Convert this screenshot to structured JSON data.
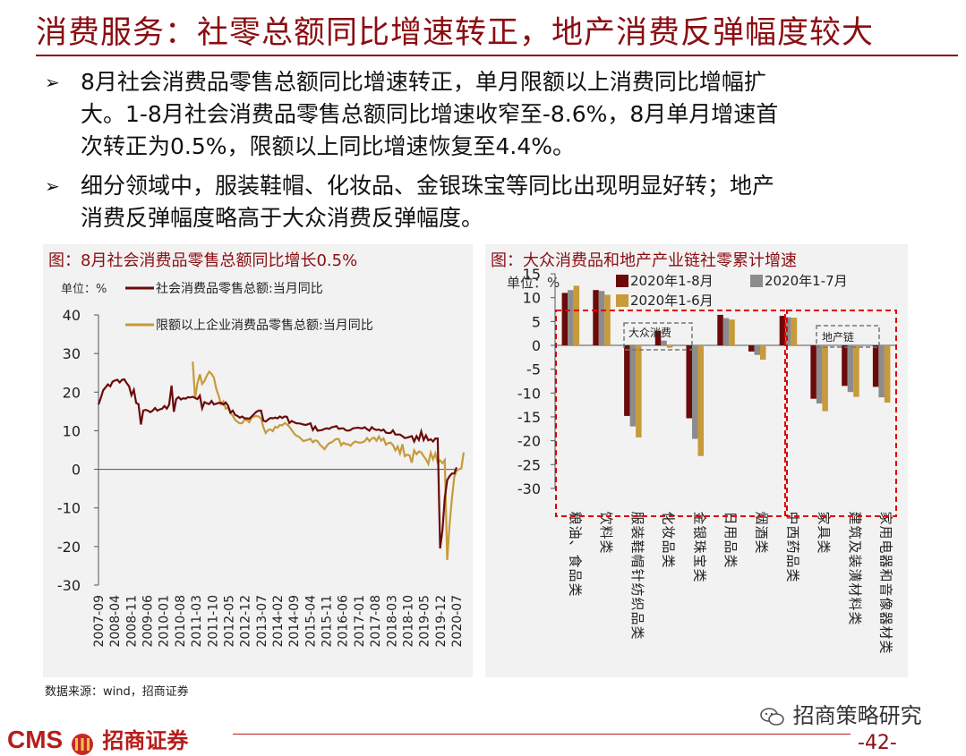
{
  "header": {
    "title": "消费服务：社零总额同比增速转正，地产消费反弹幅度较大"
  },
  "bullets": [
    {
      "arrow": "➢",
      "lines": [
        "8月社会消费品零售总额同比增速转正，单月限额以上消费同比增幅扩",
        "大。1-8月社会消费品零售总额同比增速收窄至-8.6%，8月单月增速首",
        "次转正为0.5%，限额以上同比增速恢复至4.4%。"
      ]
    },
    {
      "arrow": "➢",
      "lines": [
        "细分领域中，服装鞋帽、化妆品、金银珠宝等同比出现明显好转；地产",
        "消费反弹幅度略高于大众消费反弹幅度。"
      ]
    }
  ],
  "chart_data": [
    {
      "type": "line",
      "title": "图：8月社会消费品零售总额同比增长0.5%",
      "unit_label": "单位：%",
      "ylim": [
        -30,
        40
      ],
      "yticks": [
        "40",
        "30",
        "20",
        "10",
        "0",
        "-10",
        "-20",
        "-30"
      ],
      "x_ticks": [
        "2007-09",
        "2008-04",
        "2008-11",
        "2009-06",
        "2010-01",
        "2010-08",
        "2011-03",
        "2011-10",
        "2012-05",
        "2012-12",
        "2013-07",
        "2014-02",
        "2014-09",
        "2015-04",
        "2015-11",
        "2016-06",
        "2017-01",
        "2017-08",
        "2018-03",
        "2018-10",
        "2019-05",
        "2019-12",
        "2020-07"
      ],
      "series": [
        {
          "name": "社会消费品零售总额:当月同比",
          "color": "#6b0a0a",
          "values": [
            16.8,
            18.5,
            20.5,
            21.2,
            22.0,
            21.5,
            22.7,
            23.0,
            23.2,
            22.5,
            23.2,
            23.3,
            22.3,
            21.5,
            19.2,
            20.6,
            17.2,
            16.9,
            11.6,
            15.2,
            15.4,
            15.2,
            14.8,
            15.2,
            15.9,
            15.2,
            15.5,
            15.7,
            16.4,
            15.7,
            16.7,
            21.7,
            14.9,
            18.2,
            18.7,
            18.1,
            18.4,
            18.3,
            18.7,
            18.6,
            18.8,
            18.5,
            18.2,
            19.1,
            15.8,
            17.4,
            17.1,
            16.9,
            17.7,
            16.8,
            17.0,
            17.2,
            17.2,
            16.8,
            17.3,
            16.5,
            14.7,
            15.2,
            14.1,
            13.8,
            13.4,
            13.7,
            13.2,
            13.2,
            13.1,
            13.7,
            14.3,
            14.9,
            15.2,
            15.2,
            12.6,
            12.4,
            12.9,
            13.3,
            13.2,
            13.4,
            13.2,
            13.7,
            13.3,
            13.7,
            13.6,
            12.0,
            12.5,
            12.2,
            11.9,
            11.9,
            11.8,
            11.6,
            11.5,
            11.7,
            11.9,
            10.2,
            11.1,
            10.0,
            10.1,
            10.2,
            10.5,
            10.6,
            10.5,
            10.9,
            11.0,
            11.2,
            10.5,
            10.6,
            10.6,
            10.1,
            10.0,
            10.2,
            10.6,
            10.7,
            10.8,
            10.7,
            10.6,
            10.9,
            10.4,
            10.0,
            10.9,
            10.4,
            10.2,
            10.3,
            10.0,
            10.3,
            9.5,
            9.4,
            9.4,
            10.1,
            9.0,
            9.0,
            9.0,
            8.6,
            8.1,
            8.2,
            8.4,
            8.6,
            7.2,
            8.6,
            7.6,
            9.8,
            7.6,
            8.8,
            7.5,
            7.8,
            7.2,
            8.0,
            8.0,
            -20.5,
            -15.8,
            -7.5,
            -2.8,
            -1.8,
            -1.1,
            -1.1,
            0.5
          ]
        },
        {
          "name": "限额以上企业消费品零售总额:当月同比",
          "color": "#c79a3a",
          "values": [
            null,
            null,
            null,
            null,
            null,
            null,
            null,
            null,
            null,
            null,
            null,
            null,
            null,
            null,
            null,
            null,
            null,
            null,
            null,
            null,
            null,
            null,
            null,
            null,
            null,
            null,
            null,
            null,
            null,
            null,
            null,
            null,
            null,
            null,
            null,
            null,
            null,
            null,
            null,
            null,
            27.9,
            18.3,
            22.2,
            24.6,
            22.1,
            22.9,
            24.3,
            25.3,
            24.7,
            23.8,
            20.8,
            19.1,
            16.9,
            17.6,
            15.7,
            16.0,
            14.6,
            13.9,
            12.8,
            12.3,
            11.9,
            12.0,
            12.8,
            12.8,
            12.2,
            13.4,
            13.7,
            13.8,
            13.7,
            13.2,
            10.9,
            9.4,
            10.2,
            10.3,
            9.9,
            11.0,
            10.8,
            11.5,
            11.4,
            12.0,
            11.7,
            11.0,
            10.2,
            9.3,
            8.7,
            8.5,
            7.9,
            7.3,
            7.5,
            7.7,
            7.9,
            7.0,
            7.5,
            7.3,
            6.4,
            5.8,
            5.2,
            6.2,
            6.8,
            7.0,
            7.5,
            7.9,
            7.8,
            6.2,
            6.9,
            6.5,
            6.5,
            6.1,
            6.8,
            7.2,
            7.0,
            6.9,
            7.0,
            7.3,
            8.1,
            7.3,
            8.0,
            8.2,
            7.4,
            8.5,
            7.4,
            8.0,
            6.4,
            6.8,
            6.9,
            6.3,
            4.9,
            5.9,
            4.1,
            6.5,
            3.4,
            3.8,
            3.6,
            1.7,
            4.9,
            3.9,
            4.6,
            4.4,
            3.4,
            2.6,
            1.4,
            4.3,
            2.6,
            4.1,
            1.7,
            2.3,
            1.6,
            2.4,
            -23.5,
            -14.5,
            -7.8,
            -2.0,
            -0.4,
            0.0,
            0.2,
            4.4
          ]
        }
      ]
    },
    {
      "type": "bar",
      "title": "图：大众消费品和地产产业链社零累计增速",
      "unit_label": "单位：%",
      "ylim": [
        -30,
        15
      ],
      "yticks": [
        "15",
        "10",
        "5",
        "0",
        "-5",
        "-10",
        "-15",
        "-20",
        "-25",
        "-30"
      ],
      "categories": [
        "粮油、食品类",
        "饮料类",
        "服装鞋帽针纺织品类",
        "化妆品类",
        "金银珠宝类",
        "日用品类",
        "烟酒类",
        "中西药品类",
        "家具类",
        "建筑及装潢材料类",
        "家用电器和音像器材类"
      ],
      "series": [
        {
          "name": "2020年1-8月",
          "color": "#6b0a0a",
          "values": [
            11.0,
            11.6,
            -14.8,
            3.1,
            -15.3,
            6.4,
            -1.3,
            6.2,
            -11.2,
            -8.5,
            -8.7
          ]
        },
        {
          "name": "2020年1-7月",
          "color": "#8c8c8c",
          "values": [
            11.6,
            11.4,
            -17.0,
            1.0,
            -19.6,
            5.7,
            -2.0,
            5.9,
            -12.2,
            -9.8,
            -10.9
          ]
        },
        {
          "name": "2020年1-6月",
          "color": "#c79a3a",
          "values": [
            12.5,
            10.6,
            -19.3,
            -0.5,
            -23.2,
            5.4,
            -3.0,
            5.8,
            -13.8,
            -10.8,
            -12.0
          ]
        }
      ],
      "annotations": [
        "大众消费",
        "地产链"
      ]
    }
  ],
  "footer": {
    "source": "数据来源：wind，招商证券",
    "logo_text": "CMS",
    "logo_cn": "招商证券",
    "wechat": "招商策略研究",
    "page": "-42-"
  }
}
